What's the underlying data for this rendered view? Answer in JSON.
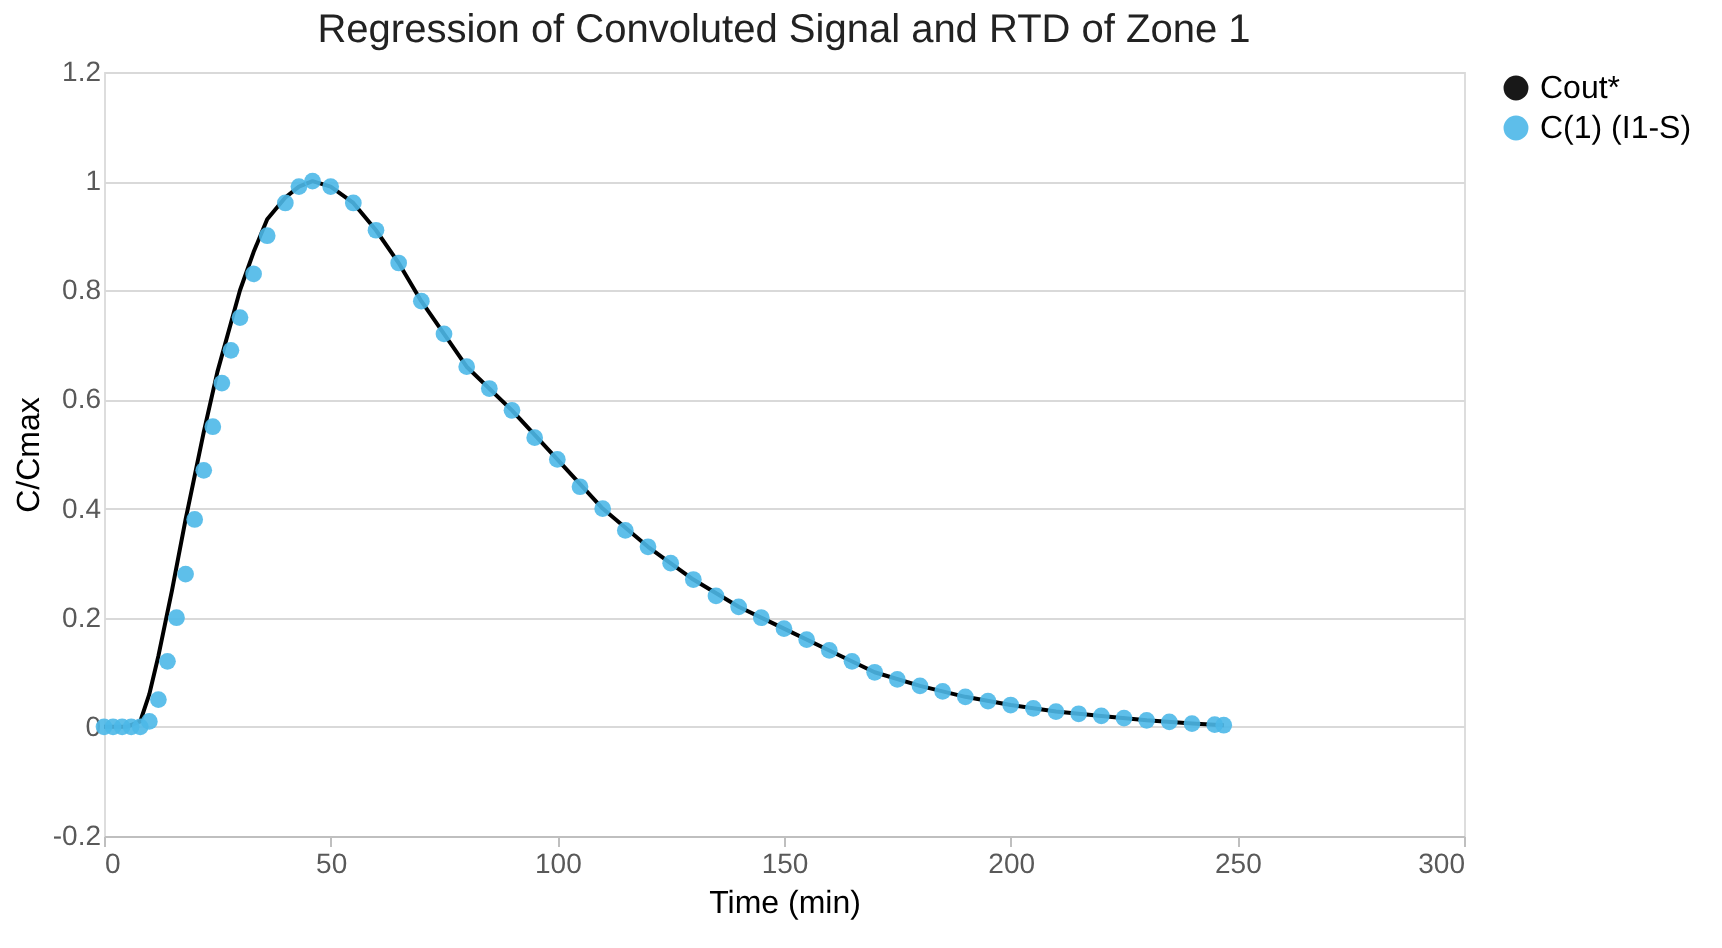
{
  "chart_data": {
    "type": "line",
    "title": "Regression of Convoluted Signal and RTD of Zone 1",
    "xlabel": "Time (min)",
    "ylabel": "C/Cmax",
    "xlim": [
      0,
      300
    ],
    "xticks": [
      0,
      50,
      100,
      150,
      200,
      250,
      300
    ],
    "ylim": [
      -0.2,
      1.2
    ],
    "yticks": [
      -0.2,
      0,
      0.2,
      0.4,
      0.6,
      0.8,
      1,
      1.2
    ],
    "grid": "y",
    "legend": "right",
    "series": [
      {
        "name": "Cout*",
        "color": "#000000",
        "line_style": "solid",
        "marker": "none",
        "x": [
          0,
          5,
          8,
          10,
          12,
          15,
          18,
          20,
          22,
          25,
          28,
          30,
          33,
          36,
          40,
          43,
          46,
          50,
          55,
          60,
          65,
          70,
          75,
          80,
          90,
          100,
          110,
          120,
          130,
          140,
          150,
          160,
          170,
          180,
          190,
          200,
          210,
          220,
          230,
          240,
          247
        ],
        "values": [
          0,
          0,
          0.01,
          0.06,
          0.13,
          0.25,
          0.38,
          0.46,
          0.54,
          0.65,
          0.74,
          0.8,
          0.87,
          0.93,
          0.97,
          0.99,
          1.0,
          0.99,
          0.96,
          0.91,
          0.85,
          0.78,
          0.72,
          0.66,
          0.58,
          0.49,
          0.4,
          0.33,
          0.27,
          0.22,
          0.18,
          0.14,
          0.1,
          0.075,
          0.055,
          0.04,
          0.028,
          0.02,
          0.012,
          0.006,
          0.003
        ]
      },
      {
        "name": "C(1) (I1-S)",
        "type": "scatter",
        "color": "#4db8e8",
        "marker": "circle",
        "x": [
          0,
          2,
          4,
          6,
          8,
          10,
          12,
          14,
          16,
          18,
          20,
          22,
          24,
          26,
          28,
          30,
          33,
          36,
          40,
          43,
          46,
          50,
          55,
          60,
          65,
          70,
          75,
          80,
          85,
          90,
          95,
          100,
          105,
          110,
          115,
          120,
          125,
          130,
          135,
          140,
          145,
          150,
          155,
          160,
          165,
          170,
          175,
          180,
          185,
          190,
          195,
          200,
          205,
          210,
          215,
          220,
          225,
          230,
          235,
          240,
          245,
          247
        ],
        "values": [
          0,
          0,
          0,
          0,
          0,
          0.01,
          0.05,
          0.12,
          0.2,
          0.28,
          0.38,
          0.47,
          0.55,
          0.63,
          0.69,
          0.75,
          0.83,
          0.9,
          0.96,
          0.99,
          1.0,
          0.99,
          0.96,
          0.91,
          0.85,
          0.78,
          0.72,
          0.66,
          0.62,
          0.58,
          0.53,
          0.49,
          0.44,
          0.4,
          0.36,
          0.33,
          0.3,
          0.27,
          0.24,
          0.22,
          0.2,
          0.18,
          0.16,
          0.14,
          0.12,
          0.1,
          0.087,
          0.075,
          0.065,
          0.055,
          0.047,
          0.04,
          0.034,
          0.028,
          0.024,
          0.02,
          0.016,
          0.012,
          0.009,
          0.006,
          0.004,
          0.003
        ]
      }
    ]
  }
}
